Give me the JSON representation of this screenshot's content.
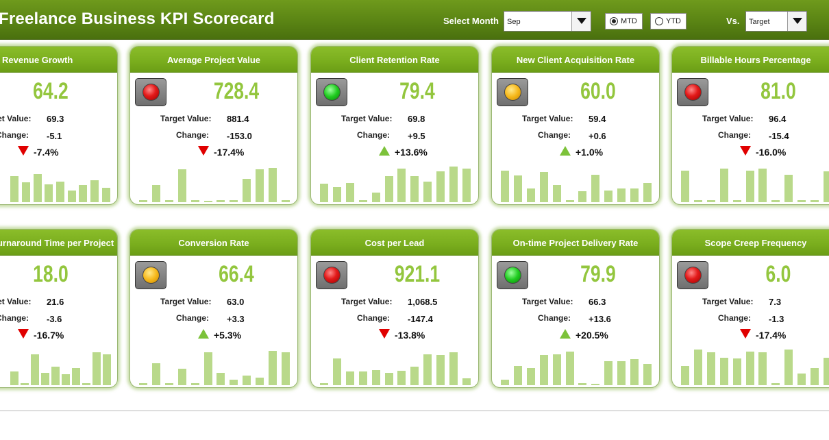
{
  "header": {
    "title": "Freelance Business KPI Scorecard",
    "select_month_label": "Select Month",
    "month_value": "Sep",
    "mtd_label": "MTD",
    "ytd_label": "YTD",
    "mtd_selected": true,
    "vs_label": "Vs.",
    "vs_value": "Target"
  },
  "labels": {
    "target": "Target Value:",
    "change": "Change:"
  },
  "colors": {
    "header": "#5a8414",
    "card_head": "#79ad1d",
    "value": "#93c63e",
    "bar": "#b9d98a",
    "up_arrow": "#7cc23a",
    "down_arrow": "#e00000"
  },
  "cards": [
    {
      "title": "Revenue Growth",
      "value": "64.2",
      "target": "69.3",
      "change": "-5.1",
      "pct": "-7.4%",
      "dir": "down",
      "light": null,
      "bars": [
        0.68,
        0.52,
        0.73,
        0.47,
        0.53,
        0.3,
        0.45,
        0.58,
        0.38
      ]
    },
    {
      "title": "Average Project Value",
      "value": "728.4",
      "target": "881.4",
      "change": "-153.0",
      "pct": "-17.4%",
      "dir": "down",
      "light": "red",
      "bars": [
        0.05,
        0.45,
        0.05,
        0.85,
        0.05,
        0.02,
        0.05,
        0.05,
        0.6,
        0.85,
        0.9,
        0.05
      ]
    },
    {
      "title": "Client Retention Rate",
      "value": "79.4",
      "target": "69.8",
      "change": "+9.5",
      "pct": "+13.6%",
      "dir": "up",
      "light": "green",
      "bars": [
        0.48,
        0.4,
        0.5,
        0.05,
        0.25,
        0.68,
        0.88,
        0.68,
        0.53,
        0.8,
        0.92,
        0.88
      ]
    },
    {
      "title": "New Client Acquisition Rate",
      "value": "60.0",
      "target": "59.4",
      "change": "+0.6",
      "pct": "+1.0%",
      "dir": "up",
      "light": "yellow",
      "bars": [
        0.82,
        0.7,
        0.35,
        0.78,
        0.45,
        0.05,
        0.28,
        0.72,
        0.3,
        0.35,
        0.35,
        0.5
      ]
    },
    {
      "title": "Billable Hours Percentage",
      "value": "81.0",
      "target": "96.4",
      "change": "-15.4",
      "pct": "-16.0%",
      "dir": "down",
      "light": "red",
      "bars": [
        0.82,
        0.05,
        0.05,
        0.88,
        0.05,
        0.82,
        0.88,
        0.05,
        0.72,
        0.05,
        0.05,
        0.8
      ]
    },
    {
      "title": "Turnaround Time per Project",
      "value": "18.0",
      "target": "21.6",
      "change": "-3.6",
      "pct": "-16.7%",
      "dir": "down",
      "light": null,
      "bars": [
        0.35,
        0.05,
        0.8,
        0.33,
        0.48,
        0.28,
        0.45,
        0.05,
        0.85,
        0.8
      ]
    },
    {
      "title": "Conversion Rate",
      "value": "66.4",
      "target": "63.0",
      "change": "+3.3",
      "pct": "+5.3%",
      "dir": "up",
      "light": "yellow",
      "bars": [
        0.05,
        0.58,
        0.05,
        0.42,
        0.05,
        0.85,
        0.32,
        0.15,
        0.25,
        0.2,
        0.9,
        0.85
      ]
    },
    {
      "title": "Cost per Lead",
      "value": "921.1",
      "target": "1,068.5",
      "change": "-147.4",
      "pct": "-13.8%",
      "dir": "down",
      "light": "red",
      "bars": [
        0.05,
        0.7,
        0.35,
        0.35,
        0.4,
        0.32,
        0.37,
        0.48,
        0.8,
        0.78,
        0.85,
        0.18
      ]
    },
    {
      "title": "On-time Project Delivery Rate",
      "value": "79.9",
      "target": "66.3",
      "change": "+13.6",
      "pct": "+20.5%",
      "dir": "up",
      "light": "green",
      "bars": [
        0.15,
        0.5,
        0.45,
        0.78,
        0.8,
        0.88,
        0.05,
        0.02,
        0.63,
        0.63,
        0.68,
        0.55
      ]
    },
    {
      "title": "Scope Creep Frequency",
      "value": "6.0",
      "target": "7.3",
      "change": "-1.3",
      "pct": "-17.4%",
      "dir": "down",
      "light": "red",
      "bars": [
        0.5,
        0.92,
        0.85,
        0.72,
        0.7,
        0.88,
        0.85,
        0.05,
        0.92,
        0.3,
        0.45,
        0.72
      ]
    }
  ]
}
